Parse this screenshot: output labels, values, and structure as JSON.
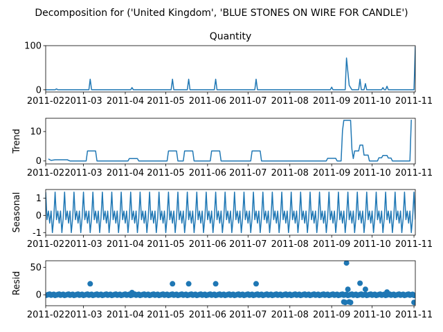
{
  "chart_data": {
    "type": "line",
    "suptitle": "Decomposition for ('United Kingdom', 'BLUE STONES ON WIRE FOR CANDLE')",
    "color": "#1f77b4",
    "x_ticks": [
      "2011-02",
      "2011-03",
      "2011-04",
      "2011-05",
      "2011-06",
      "2011-07",
      "2011-08",
      "2011-09",
      "2011-10",
      "2011-11"
    ],
    "panels": [
      {
        "id": "observed",
        "kind": "line",
        "title": "Quantity",
        "ylabel": "",
        "ylim": [
          -5,
          100
        ],
        "yticks": [
          0,
          100
        ],
        "points": [
          [
            "2011-02-01",
            0
          ],
          [
            "2011-02-08",
            0
          ],
          [
            "2011-02-09",
            2
          ],
          [
            "2011-02-10",
            0
          ],
          [
            "2011-03-05",
            0
          ],
          [
            "2011-03-06",
            24
          ],
          [
            "2011-03-07",
            0
          ],
          [
            "2011-04-05",
            0
          ],
          [
            "2011-04-06",
            5
          ],
          [
            "2011-04-07",
            0
          ],
          [
            "2011-05-05",
            0
          ],
          [
            "2011-05-06",
            24
          ],
          [
            "2011-05-07",
            0
          ],
          [
            "2011-05-17",
            0
          ],
          [
            "2011-05-18",
            24
          ],
          [
            "2011-05-19",
            0
          ],
          [
            "2011-06-06",
            0
          ],
          [
            "2011-06-07",
            24
          ],
          [
            "2011-06-08",
            0
          ],
          [
            "2011-07-06",
            0
          ],
          [
            "2011-07-07",
            24
          ],
          [
            "2011-07-08",
            0
          ],
          [
            "2011-08-31",
            0
          ],
          [
            "2011-09-01",
            6
          ],
          [
            "2011-09-02",
            0
          ],
          [
            "2011-09-11",
            0
          ],
          [
            "2011-09-12",
            72
          ],
          [
            "2011-09-14",
            10
          ],
          [
            "2011-09-16",
            0
          ],
          [
            "2011-09-21",
            0
          ],
          [
            "2011-09-22",
            24
          ],
          [
            "2011-09-23",
            0
          ],
          [
            "2011-09-25",
            0
          ],
          [
            "2011-09-26",
            14
          ],
          [
            "2011-09-27",
            0
          ],
          [
            "2011-10-08",
            0
          ],
          [
            "2011-10-09",
            5
          ],
          [
            "2011-10-10",
            0
          ],
          [
            "2011-10-11",
            0
          ],
          [
            "2011-10-12",
            8
          ],
          [
            "2011-10-13",
            0
          ],
          [
            "2011-11-01",
            0
          ],
          [
            "2011-11-02",
            98
          ]
        ]
      },
      {
        "id": "trend",
        "kind": "line",
        "title": "",
        "ylabel": "Trend",
        "ylim": [
          -1,
          14.5
        ],
        "yticks": [
          0,
          10
        ],
        "points": [
          [
            "2011-02-03",
            0.7
          ],
          [
            "2011-02-05",
            0.2
          ],
          [
            "2011-02-08",
            0.4
          ],
          [
            "2011-02-17",
            0.4
          ],
          [
            "2011-02-19",
            0
          ],
          [
            "2011-03-03",
            0
          ],
          [
            "2011-03-04",
            3.4
          ],
          [
            "2011-03-10",
            3.4
          ],
          [
            "2011-03-11",
            0
          ],
          [
            "2011-04-03",
            0
          ],
          [
            "2011-04-04",
            0.8
          ],
          [
            "2011-04-10",
            0.8
          ],
          [
            "2011-04-11",
            0
          ],
          [
            "2011-05-02",
            0
          ],
          [
            "2011-05-03",
            3.4
          ],
          [
            "2011-05-09",
            3.4
          ],
          [
            "2011-05-10",
            0
          ],
          [
            "2011-05-14",
            0
          ],
          [
            "2011-05-15",
            3.4
          ],
          [
            "2011-05-21",
            3.4
          ],
          [
            "2011-05-22",
            0
          ],
          [
            "2011-06-03",
            0
          ],
          [
            "2011-06-04",
            3.4
          ],
          [
            "2011-06-10",
            3.4
          ],
          [
            "2011-06-11",
            0
          ],
          [
            "2011-07-03",
            0
          ],
          [
            "2011-07-04",
            3.4
          ],
          [
            "2011-07-10",
            3.4
          ],
          [
            "2011-07-11",
            0
          ],
          [
            "2011-08-28",
            0
          ],
          [
            "2011-08-29",
            0.9
          ],
          [
            "2011-09-04",
            0.9
          ],
          [
            "2011-09-05",
            0
          ],
          [
            "2011-09-08",
            0
          ],
          [
            "2011-09-09",
            10.3
          ],
          [
            "2011-09-10",
            13.8
          ],
          [
            "2011-09-15",
            13.8
          ],
          [
            "2011-09-16",
            4
          ],
          [
            "2011-09-17",
            0.8
          ],
          [
            "2011-09-18",
            3.4
          ],
          [
            "2011-09-21",
            3.4
          ],
          [
            "2011-09-22",
            5.4
          ],
          [
            "2011-09-24",
            5.4
          ],
          [
            "2011-09-25",
            2
          ],
          [
            "2011-09-28",
            2
          ],
          [
            "2011-09-29",
            0
          ],
          [
            "2011-10-05",
            0
          ],
          [
            "2011-10-06",
            1.1
          ],
          [
            "2011-10-08",
            1.1
          ],
          [
            "2011-10-09",
            1.9
          ],
          [
            "2011-10-12",
            1.9
          ],
          [
            "2011-10-13",
            1
          ],
          [
            "2011-10-15",
            1
          ],
          [
            "2011-10-16",
            0
          ],
          [
            "2011-10-29",
            0
          ],
          [
            "2011-10-30",
            14
          ]
        ]
      },
      {
        "id": "seasonal",
        "kind": "seasonal",
        "title": "",
        "ylabel": "Seasonal",
        "ylim": [
          -1.15,
          1.5
        ],
        "yticks": [
          -1,
          0,
          1
        ],
        "period_days": 7,
        "start": "2011-02-01",
        "end": "2011-11-02",
        "pattern": [
          1.35,
          -0.25,
          0.25,
          -0.45,
          0.25,
          -1.0,
          -0.15
        ]
      },
      {
        "id": "resid",
        "kind": "scatter",
        "title": "",
        "ylabel": "Resid",
        "ylim": [
          -20,
          62
        ],
        "yticks": [
          0,
          50
        ],
        "baseline": 0,
        "points": [
          [
            "2011-03-06",
            20
          ],
          [
            "2011-04-06",
            4
          ],
          [
            "2011-05-06",
            20
          ],
          [
            "2011-05-18",
            20
          ],
          [
            "2011-06-07",
            20
          ],
          [
            "2011-07-07",
            20
          ],
          [
            "2011-09-12",
            58
          ],
          [
            "2011-09-13",
            10
          ],
          [
            "2011-09-10",
            -13
          ],
          [
            "2011-09-11",
            -14
          ],
          [
            "2011-09-14",
            -13
          ],
          [
            "2011-09-15",
            -14
          ],
          [
            "2011-09-22",
            21
          ],
          [
            "2011-09-26",
            10
          ],
          [
            "2011-10-12",
            5
          ],
          [
            "2011-11-01",
            -14
          ]
        ]
      }
    ]
  }
}
